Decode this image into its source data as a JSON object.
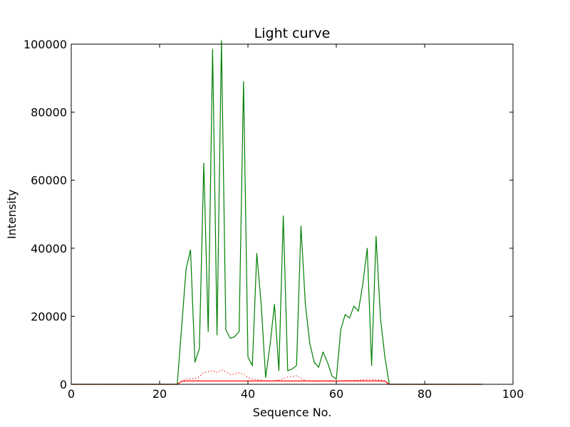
{
  "chart_data": {
    "type": "line",
    "title": "Light curve",
    "xlabel": "Sequence No.",
    "ylabel": "Intensity",
    "xlim": [
      0,
      100
    ],
    "ylim": [
      0,
      100000
    ],
    "xticks": [
      0,
      20,
      40,
      60,
      80,
      100
    ],
    "yticks": [
      0,
      20000,
      40000,
      60000,
      80000,
      100000
    ],
    "grid": false,
    "legend": "none",
    "series": [
      {
        "color": "#007f00",
        "style": "solid",
        "x": [
          0,
          24,
          26,
          27,
          28,
          29,
          30,
          31,
          32,
          33,
          34,
          35,
          36,
          37,
          38,
          39,
          40,
          41,
          42,
          43,
          44,
          45,
          46,
          47,
          48,
          49,
          50,
          51,
          52,
          53,
          54,
          55,
          56,
          57,
          58,
          59,
          60,
          61,
          62,
          63,
          64,
          65,
          66,
          67,
          68,
          69,
          70,
          71,
          72,
          93
        ],
        "values": [
          0,
          0,
          34000,
          39500,
          6500,
          10500,
          65000,
          15500,
          98500,
          14500,
          101000,
          16000,
          13500,
          14000,
          15500,
          89000,
          8000,
          5500,
          38500,
          23500,
          2000,
          11500,
          23500,
          4000,
          49500,
          4000,
          4500,
          5500,
          46500,
          23500,
          12000,
          6500,
          5000,
          9500,
          6500,
          2500,
          1500,
          16000,
          20500,
          19500,
          23000,
          21500,
          29500,
          40000,
          5500,
          43500,
          19500,
          8000,
          0,
          0
        ]
      },
      {
        "color": "#ff0000",
        "style": "dotted",
        "x": [
          0,
          24,
          25,
          26,
          27,
          28,
          29,
          30,
          31,
          32,
          33,
          34,
          35,
          36,
          37,
          38,
          39,
          40,
          41,
          42,
          43,
          44,
          45,
          46,
          47,
          48,
          49,
          50,
          51,
          52,
          53,
          54,
          55,
          56,
          57,
          58,
          59,
          60,
          61,
          62,
          63,
          64,
          65,
          66,
          67,
          68,
          69,
          70,
          71,
          72,
          93
        ],
        "values": [
          0,
          0,
          800,
          1600,
          1600,
          1700,
          2200,
          3500,
          3700,
          4000,
          3500,
          4300,
          3700,
          2900,
          3000,
          3400,
          3000,
          2000,
          1500,
          1400,
          1200,
          1000,
          1000,
          1100,
          1300,
          1600,
          2200,
          2300,
          2500,
          1800,
          1100,
          900,
          900,
          900,
          1000,
          900,
          900,
          900,
          1000,
          1100,
          1100,
          1100,
          1200,
          1300,
          1500,
          1500,
          1400,
          1200,
          1000,
          0,
          0
        ]
      },
      {
        "color": "#ff0000",
        "style": "solid",
        "x": [
          0,
          24,
          25,
          26,
          70,
          71,
          72,
          93
        ],
        "values": [
          0,
          0,
          900,
          1000,
          1000,
          900,
          0,
          0
        ]
      }
    ]
  }
}
